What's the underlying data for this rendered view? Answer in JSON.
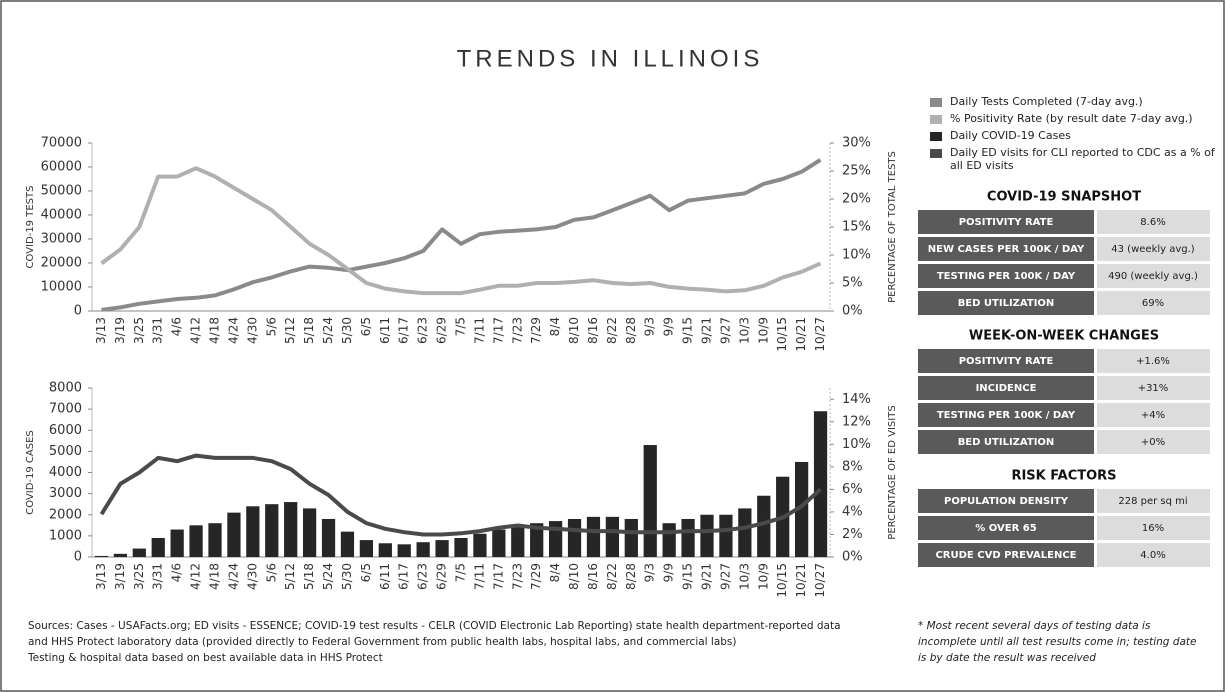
{
  "title": "TRENDS IN ILLINOIS",
  "chart_data": [
    {
      "type": "line",
      "y_label": "COVID-19 TESTS",
      "y2_label": "PERCENTAGE OF TOTAL TESTS",
      "categories": [
        "3/13",
        "3/19",
        "3/25",
        "3/31",
        "4/6",
        "4/12",
        "4/18",
        "4/24",
        "4/30",
        "5/6",
        "5/12",
        "5/18",
        "5/24",
        "5/30",
        "6/5",
        "6/11",
        "6/17",
        "6/23",
        "6/29",
        "7/5",
        "7/11",
        "7/17",
        "7/23",
        "7/29",
        "8/4",
        "8/10",
        "8/16",
        "8/22",
        "8/28",
        "9/3",
        "9/9",
        "9/15",
        "9/21",
        "9/27",
        "10/3",
        "10/9",
        "10/15",
        "10/21",
        "10/27"
      ],
      "ylim": [
        0,
        70000
      ],
      "yticks": [
        0,
        10000,
        20000,
        30000,
        40000,
        50000,
        60000,
        70000
      ],
      "y2lim": [
        0,
        30
      ],
      "y2ticks": [
        {
          "value": 0,
          "label": "0%"
        },
        {
          "value": 5,
          "label": "5%"
        },
        {
          "value": 10,
          "label": "10%"
        },
        {
          "value": 15,
          "label": "15%"
        },
        {
          "value": 20,
          "label": "20%"
        },
        {
          "value": 25,
          "label": "25%"
        },
        {
          "value": 30,
          "label": "30%"
        }
      ],
      "series": [
        {
          "name": "Daily Tests Completed (7-day avg.)",
          "color": "#8a8a8a",
          "type": "line",
          "values": [
            500,
            1500,
            3000,
            4000,
            5000,
            5500,
            6500,
            9000,
            12000,
            14000,
            16500,
            18500,
            18000,
            17000,
            18500,
            20000,
            22000,
            25000,
            34000,
            28000,
            32000,
            33000,
            33500,
            34000,
            35000,
            38000,
            39000,
            42000,
            45000,
            48000,
            42000,
            46000,
            47000,
            48000,
            49000,
            53000,
            55000,
            58000,
            63000
          ]
        },
        {
          "name": "% Positivity Rate (by result date 7-day avg.)",
          "color": "#b0b0b0",
          "type": "line",
          "axis": "y2",
          "values": [
            8.5,
            11,
            15,
            24,
            24,
            25.5,
            24,
            22,
            20,
            18,
            15,
            12,
            10,
            7.5,
            5,
            4,
            3.5,
            3.2,
            3.2,
            3.2,
            3.8,
            4.5,
            4.5,
            5,
            5,
            5.2,
            5.5,
            5,
            4.8,
            5,
            4.3,
            4,
            3.8,
            3.5,
            3.7,
            4.5,
            6,
            7,
            8.5
          ]
        }
      ]
    },
    {
      "type": "bar",
      "y_label": "COVID-19 CASES",
      "y2_label": "PERCENTAGE OF ED VISITS",
      "categories": [
        "3/13",
        "3/19",
        "3/25",
        "3/31",
        "4/6",
        "4/12",
        "4/18",
        "4/24",
        "4/30",
        "5/6",
        "5/12",
        "5/18",
        "5/24",
        "5/30",
        "6/5",
        "6/11",
        "6/17",
        "6/23",
        "6/29",
        "7/5",
        "7/11",
        "7/17",
        "7/23",
        "7/29",
        "8/4",
        "8/10",
        "8/16",
        "8/22",
        "8/28",
        "9/3",
        "9/9",
        "9/15",
        "9/21",
        "9/27",
        "10/3",
        "10/9",
        "10/15",
        "10/21",
        "10/27"
      ],
      "ylim": [
        0,
        8000
      ],
      "yticks": [
        0,
        1000,
        2000,
        3000,
        4000,
        5000,
        6000,
        7000,
        8000
      ],
      "y2lim": [
        0,
        15
      ],
      "y2ticks": [
        {
          "value": 0,
          "label": "0%"
        },
        {
          "value": 2,
          "label": "2%"
        },
        {
          "value": 4,
          "label": "4%"
        },
        {
          "value": 6,
          "label": "6%"
        },
        {
          "value": 8,
          "label": "8%"
        },
        {
          "value": 10,
          "label": "10%"
        },
        {
          "value": 12,
          "label": "12%"
        },
        {
          "value": 14,
          "label": "14%"
        }
      ],
      "series": [
        {
          "name": "Daily COVID-19 Cases",
          "color": "#262626",
          "type": "bar",
          "values": [
            50,
            150,
            400,
            900,
            1300,
            1500,
            1600,
            2100,
            2400,
            2500,
            2600,
            2300,
            1800,
            1200,
            800,
            650,
            600,
            700,
            800,
            900,
            1100,
            1300,
            1400,
            1600,
            1700,
            1800,
            1900,
            1900,
            1800,
            5300,
            1600,
            1800,
            2000,
            2000,
            2300,
            2900,
            3800,
            4500,
            6900
          ]
        },
        {
          "name": "Daily ED visits for CLI reported to CDC as a % of all ED visits",
          "color": "#4a4a4a",
          "type": "line",
          "axis": "y2",
          "values": [
            3.8,
            6.5,
            7.5,
            8.8,
            8.5,
            9,
            8.8,
            8.8,
            8.8,
            8.5,
            7.8,
            6.5,
            5.5,
            4,
            3,
            2.5,
            2.2,
            2,
            2,
            2.1,
            2.3,
            2.6,
            2.8,
            2.6,
            2.5,
            2.4,
            2.3,
            2.3,
            2.2,
            2.2,
            2.2,
            2.3,
            2.3,
            2.4,
            2.6,
            3,
            3.5,
            4.5,
            6
          ]
        }
      ]
    }
  ],
  "snapshot": {
    "title": "COVID-19 SNAPSHOT",
    "rows": [
      [
        "POSITIVITY RATE",
        "8.6%"
      ],
      [
        "NEW CASES PER 100K / DAY",
        "43 (weekly avg.)"
      ],
      [
        "TESTING PER 100K / DAY",
        "490 (weekly avg.)"
      ],
      [
        "BED UTILIZATION",
        "69%"
      ]
    ]
  },
  "week_on_week": {
    "title": "WEEK-ON-WEEK CHANGES",
    "rows": [
      [
        "POSITIVITY RATE",
        "+1.6%"
      ],
      [
        "INCIDENCE",
        "+31%"
      ],
      [
        "TESTING PER 100K / DAY",
        "+4%"
      ],
      [
        "BED UTILIZATION",
        "+0%"
      ]
    ]
  },
  "risk_factors": {
    "title": "RISK FACTORS",
    "rows": [
      [
        "POPULATION DENSITY",
        "228 per sq mi"
      ],
      [
        "% OVER 65",
        "16%"
      ],
      [
        "CRUDE CVD PREVALENCE",
        "4.0%"
      ]
    ]
  },
  "sources": [
    "Sources: Cases - USAFacts.org;  ED visits - ESSENCE;  COVID-19 test results - CELR (COVID Electronic Lab Reporting) state health department-reported data",
    "and HHS Protect laboratory data (provided directly to Federal Government from public health labs, hospital labs, and commercial labs)",
    "Testing & hospital data based on best available data in HHS Protect"
  ],
  "footnote": "* Most recent several days of testing data is incomplete until all test results come in; testing date is by date the result was received"
}
